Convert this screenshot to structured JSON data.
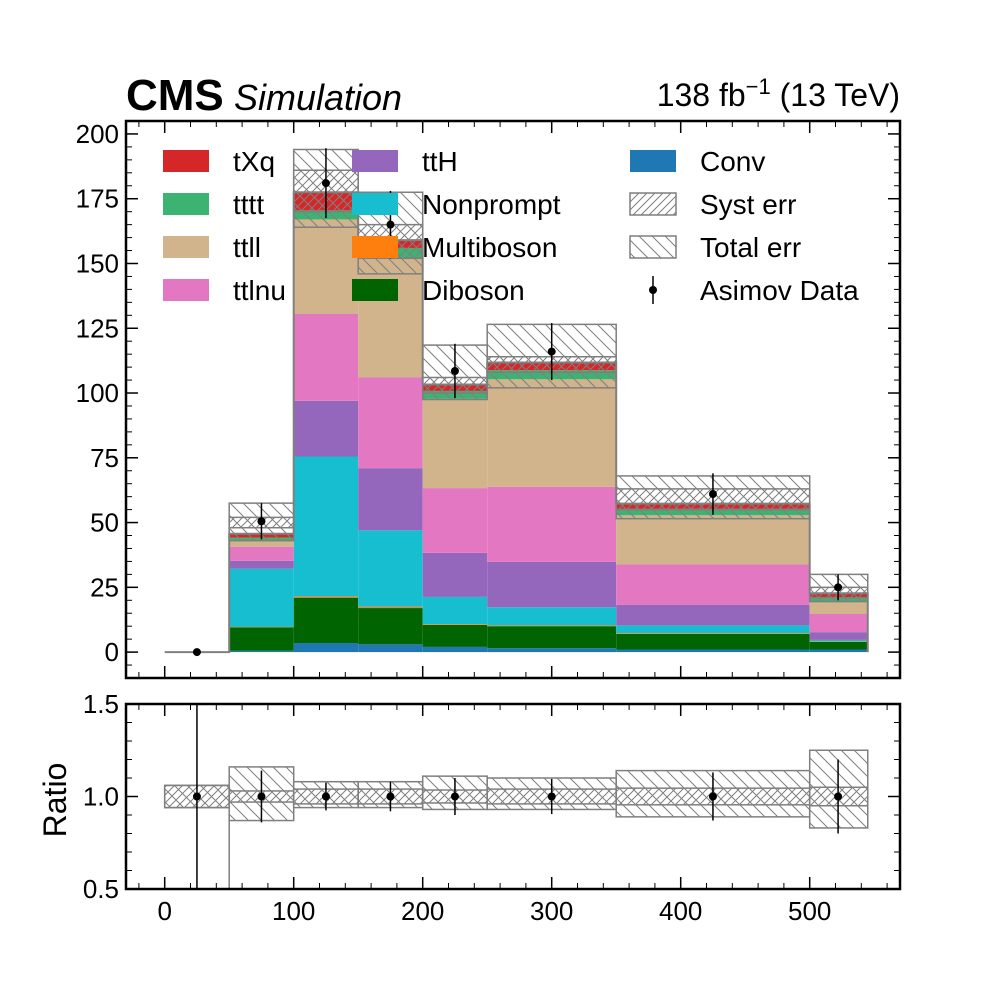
{
  "header": {
    "experiment": "CMS",
    "status": "Simulation",
    "lumi_value": "138 fb",
    "lumi_exp": "−1",
    "energy": " (13 TeV)"
  },
  "chart_data": {
    "type": "bar",
    "stacked": true,
    "bin_edges": [
      0,
      50,
      100,
      150,
      200,
      250,
      350,
      500,
      545
    ],
    "xlim": [
      -30,
      570
    ],
    "xticks": [
      0,
      100,
      200,
      300,
      400,
      500
    ],
    "xtick_labels": [
      "0",
      "100",
      "200",
      "300",
      "400",
      "500"
    ],
    "main_panel": {
      "ylabel": "",
      "ylim": [
        -10,
        205
      ],
      "yticks": [
        0,
        25,
        50,
        75,
        100,
        125,
        150,
        175,
        200
      ],
      "ytick_labels": [
        "0",
        "25",
        "50",
        "75",
        "100",
        "125",
        "150",
        "175",
        "200"
      ],
      "series": [
        {
          "name": "Conv",
          "color": "#1f77b4",
          "values": [
            0,
            0.5,
            3.5,
            3,
            2,
            1.5,
            1,
            1
          ]
        },
        {
          "name": "Diboson",
          "color": "#006400",
          "values": [
            0,
            9,
            17.5,
            14,
            8.5,
            8.5,
            6,
            3
          ]
        },
        {
          "name": "Multiboson",
          "color": "#ff7f0e",
          "values": [
            0,
            0.2,
            0.5,
            0.5,
            0.3,
            0.3,
            0.3,
            0.2
          ]
        },
        {
          "name": "Nonprompt",
          "color": "#17becf",
          "values": [
            0,
            22.5,
            54,
            29.5,
            10.5,
            7,
            3,
            0.5
          ]
        },
        {
          "name": "ttH",
          "color": "#9467bd",
          "values": [
            0,
            3,
            21.5,
            24,
            17,
            17.5,
            8,
            3
          ]
        },
        {
          "name": "ttlnu",
          "color": "#e377c2",
          "values": [
            0,
            5.5,
            33.5,
            35,
            25,
            29,
            15.5,
            7
          ]
        },
        {
          "name": "ttll",
          "color": "#d2b48c",
          "values": [
            0,
            2.5,
            36.5,
            46,
            34.5,
            41.5,
            19,
            5
          ]
        },
        {
          "name": "tttt",
          "color": "#3cb371",
          "values": [
            0,
            1,
            3.5,
            4,
            3,
            3.5,
            2.5,
            1.5
          ]
        },
        {
          "name": "tXq",
          "color": "#d62728",
          "values": [
            0,
            1.5,
            7,
            3,
            2.5,
            3,
            2,
            1.5
          ]
        }
      ],
      "syst_err": {
        "name": "Syst err",
        "lo": [
          0,
          48,
          170,
          152,
          100,
          108,
          55,
          21
        ],
        "hi": [
          0,
          52,
          186,
          165,
          106,
          114,
          63,
          25
        ]
      },
      "total_err": {
        "name": "Total err",
        "lo": [
          0,
          43,
          164,
          146,
          97.5,
          102,
          51.5,
          19.5
        ],
        "hi": [
          0,
          57.5,
          194,
          177.5,
          118.5,
          126.5,
          68,
          30
        ]
      },
      "data": {
        "name": "Asimov Data",
        "x": [
          25,
          75,
          125,
          175,
          225,
          300,
          425,
          522
        ],
        "y": [
          0,
          50.5,
          181,
          165,
          108.5,
          116,
          61,
          25
        ],
        "err": [
          0,
          7,
          13.5,
          13,
          10.5,
          11,
          8,
          5
        ]
      }
    },
    "ratio_panel": {
      "ylabel": "Ratio",
      "ylim": [
        0.5,
        1.5
      ],
      "yticks": [
        0.5,
        1.0,
        1.5
      ],
      "ytick_labels": [
        "0.5",
        "1.0",
        "1.5"
      ],
      "syst_lo": [
        0.94,
        0.97,
        0.96,
        0.96,
        0.965,
        0.96,
        0.955,
        0.95
      ],
      "syst_hi": [
        1.06,
        1.03,
        1.04,
        1.04,
        1.035,
        1.04,
        1.045,
        1.05
      ],
      "total_lo": [
        0.94,
        0.87,
        0.94,
        0.94,
        0.93,
        0.93,
        0.89,
        0.83
      ],
      "total_hi": [
        1.06,
        1.16,
        1.08,
        1.08,
        1.11,
        1.1,
        1.14,
        1.25
      ],
      "data_y": [
        1.0,
        1.0,
        1.0,
        1.0,
        1.0,
        1.0,
        1.0,
        1.0
      ],
      "data_err": [
        1.0,
        0.14,
        0.075,
        0.08,
        0.1,
        0.095,
        0.13,
        0.2
      ]
    },
    "legend": {
      "placement": "top",
      "entries": [
        "tXq",
        "tttt",
        "ttll",
        "ttlnu",
        "ttH",
        "Nonprompt",
        "Multiboson",
        "Diboson",
        "Conv",
        "Syst err",
        "Total err",
        "Asimov Data"
      ]
    }
  }
}
